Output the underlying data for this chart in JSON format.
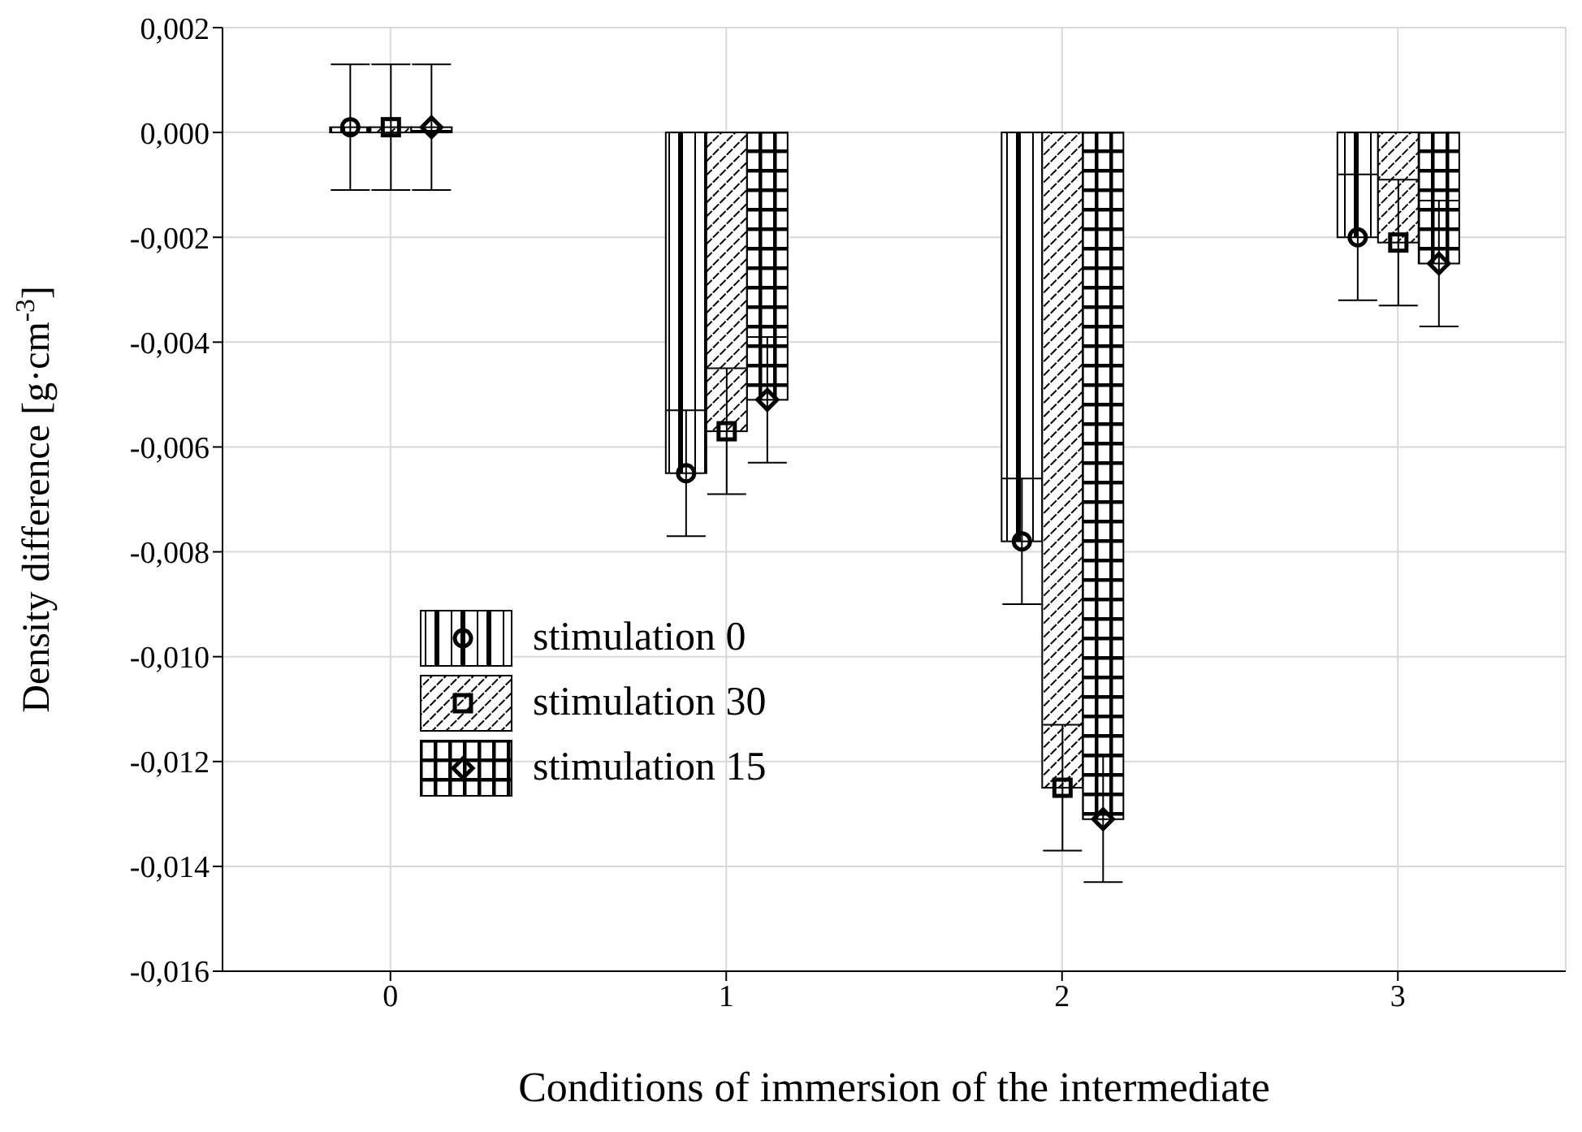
{
  "chart_data": {
    "type": "bar",
    "xlabel": "Conditions of immersion of the intermediate",
    "ylabel": "Density difference [g·cm$^{-3}$]",
    "categories": [
      "0",
      "1",
      "2",
      "3"
    ],
    "series": [
      {
        "name": "stimulation 0",
        "color": "#000000",
        "marker": "circle",
        "values": [
          0.0001,
          -0.0065,
          -0.0078,
          -0.002
        ],
        "errors": [
          0.0012,
          0.0012,
          0.0012,
          0.0012
        ]
      },
      {
        "name": "stimulation 30",
        "color": "#000000",
        "marker": "square",
        "values": [
          0.0001,
          -0.0057,
          -0.0125,
          -0.0021
        ],
        "errors": [
          0.0012,
          0.0012,
          0.0012,
          0.0012
        ]
      },
      {
        "name": "stimulation 15",
        "color": "#000000",
        "marker": "diamond",
        "values": [
          0.0001,
          -0.0051,
          -0.0131,
          -0.0025
        ],
        "errors": [
          0.0012,
          0.0012,
          0.0012,
          0.0012
        ]
      }
    ],
    "ylim": [
      -0.016,
      0.002
    ],
    "yticks": [
      {
        "value": 0.002,
        "label": "0,002"
      },
      {
        "value": 0,
        "label": "0,000"
      },
      {
        "value": -0.002,
        "label": "-0,002"
      },
      {
        "value": -0.004,
        "label": "-0,004"
      },
      {
        "value": -0.006,
        "label": "-0,006"
      },
      {
        "value": -0.008,
        "label": "-0,008"
      },
      {
        "value": -0.01,
        "label": "-0,010"
      },
      {
        "value": -0.012,
        "label": "-0,012"
      },
      {
        "value": -0.014,
        "label": "-0,014"
      },
      {
        "value": -0.016,
        "label": "-0,016"
      }
    ],
    "grid": true,
    "legend": "left"
  }
}
